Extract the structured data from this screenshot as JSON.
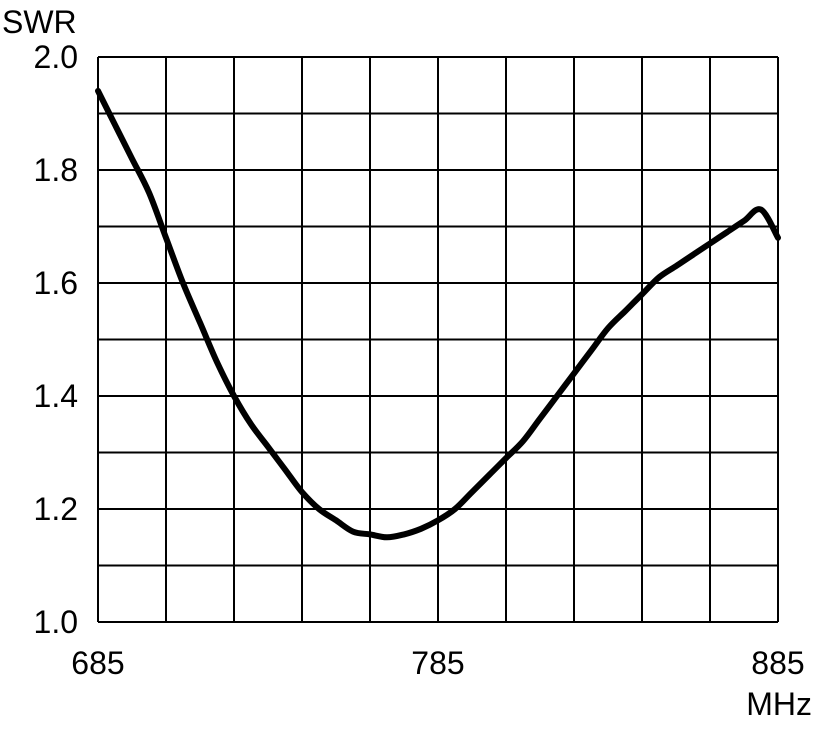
{
  "chart_data": {
    "type": "line",
    "title": "",
    "ylabel": "SWR",
    "xlabel": "MHz",
    "xlim": [
      685,
      885
    ],
    "ylim": [
      1.0,
      2.0
    ],
    "x_ticks": [
      685,
      785,
      885
    ],
    "x_tick_labels": [
      "685",
      "785",
      "885"
    ],
    "x_grid_step": 20,
    "y_ticks": [
      1.0,
      1.2,
      1.4,
      1.6,
      1.8,
      2.0
    ],
    "y_tick_labels": [
      "1.0",
      "1.2",
      "1.4",
      "1.6",
      "1.8",
      "2.0"
    ],
    "y_grid_step": 0.1,
    "grid": true,
    "line_color": "#000000",
    "series": [
      {
        "x": [
          685,
          690,
          695,
          700,
          705,
          710,
          715,
          720,
          725,
          730,
          735,
          740,
          745,
          750,
          755,
          760,
          765,
          770,
          775,
          780,
          785,
          790,
          795,
          800,
          805,
          810,
          815,
          820,
          825,
          830,
          835,
          840,
          845,
          850,
          855,
          860,
          865,
          870,
          875,
          880,
          885
        ],
        "y": [
          1.94,
          1.88,
          1.82,
          1.76,
          1.68,
          1.6,
          1.53,
          1.46,
          1.4,
          1.35,
          1.31,
          1.27,
          1.23,
          1.2,
          1.18,
          1.16,
          1.155,
          1.15,
          1.155,
          1.165,
          1.18,
          1.2,
          1.23,
          1.26,
          1.29,
          1.32,
          1.36,
          1.4,
          1.44,
          1.48,
          1.52,
          1.55,
          1.58,
          1.61,
          1.63,
          1.65,
          1.67,
          1.69,
          1.71,
          1.73,
          1.68
        ]
      }
    ]
  }
}
